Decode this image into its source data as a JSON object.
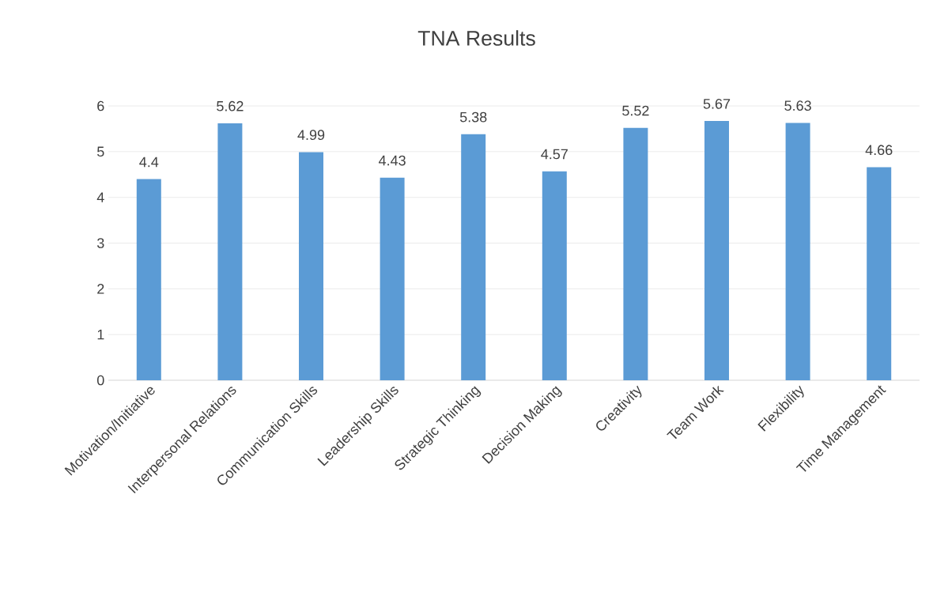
{
  "chart_data": {
    "type": "bar",
    "title": "TNA Results",
    "categories": [
      "Motivation/Initiative",
      "Interpersonal Relations",
      "Communication Skills",
      "Leadership Skills",
      "Strategic Thinking",
      "Decision Making",
      "Creativity",
      "Team Work",
      "Flexibility",
      "Time Management"
    ],
    "values": [
      4.4,
      5.62,
      4.99,
      4.43,
      5.38,
      4.57,
      5.52,
      5.67,
      5.63,
      4.66
    ],
    "color": "#5b9bd5",
    "ylim": [
      0,
      6
    ],
    "yticks": [
      0,
      1,
      2,
      3,
      4,
      5,
      6
    ],
    "grid": "y",
    "data_labels": true
  }
}
